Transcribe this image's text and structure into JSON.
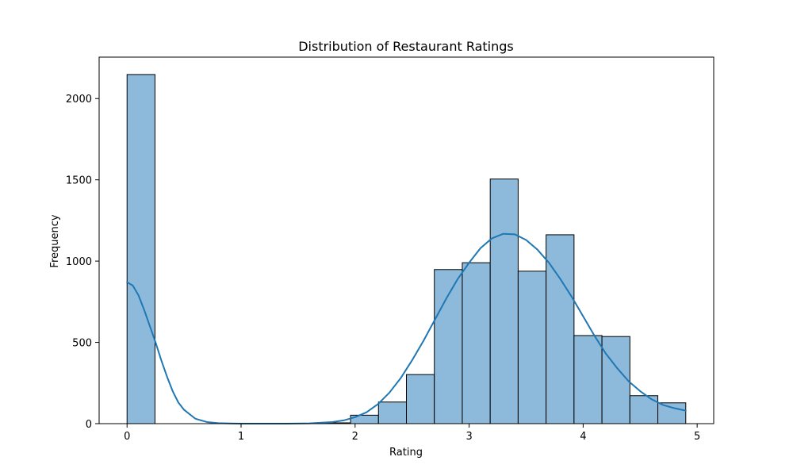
{
  "chart_data": {
    "type": "bar",
    "title": "Distribution of Restaurant Ratings",
    "xlabel": "Rating",
    "ylabel": "Frequency",
    "xlim": [
      -0.245,
      5.145
    ],
    "ylim": [
      0,
      2255
    ],
    "xticks": [
      0,
      1,
      2,
      3,
      4,
      5
    ],
    "yticks": [
      0,
      500,
      1000,
      1500,
      2000
    ],
    "grid": false,
    "bin_width": 0.245,
    "bins": [
      {
        "start": 0.0,
        "end": 0.245,
        "count": 2148
      },
      {
        "start": 0.245,
        "end": 0.49,
        "count": 0
      },
      {
        "start": 0.49,
        "end": 0.735,
        "count": 0
      },
      {
        "start": 0.735,
        "end": 0.98,
        "count": 0
      },
      {
        "start": 0.98,
        "end": 1.225,
        "count": 0
      },
      {
        "start": 1.225,
        "end": 1.47,
        "count": 0
      },
      {
        "start": 1.47,
        "end": 1.715,
        "count": 0
      },
      {
        "start": 1.715,
        "end": 1.96,
        "count": 5
      },
      {
        "start": 1.96,
        "end": 2.205,
        "count": 52
      },
      {
        "start": 2.205,
        "end": 2.45,
        "count": 133
      },
      {
        "start": 2.45,
        "end": 2.695,
        "count": 302
      },
      {
        "start": 2.695,
        "end": 2.94,
        "count": 948
      },
      {
        "start": 2.94,
        "end": 3.185,
        "count": 990
      },
      {
        "start": 3.185,
        "end": 3.43,
        "count": 1505
      },
      {
        "start": 3.43,
        "end": 3.675,
        "count": 938
      },
      {
        "start": 3.675,
        "end": 3.92,
        "count": 1162
      },
      {
        "start": 3.92,
        "end": 4.165,
        "count": 542
      },
      {
        "start": 4.165,
        "end": 4.41,
        "count": 536
      },
      {
        "start": 4.41,
        "end": 4.655,
        "count": 172
      },
      {
        "start": 4.655,
        "end": 4.9,
        "count": 128
      }
    ],
    "kde_curve": {
      "x": [
        0.0,
        0.05,
        0.1,
        0.15,
        0.2,
        0.25,
        0.3,
        0.35,
        0.4,
        0.45,
        0.5,
        0.6,
        0.7,
        0.8,
        0.9,
        1.0,
        1.2,
        1.4,
        1.6,
        1.8,
        1.9,
        2.0,
        2.1,
        2.2,
        2.3,
        2.4,
        2.5,
        2.6,
        2.7,
        2.8,
        2.9,
        3.0,
        3.1,
        3.2,
        3.3,
        3.4,
        3.5,
        3.6,
        3.7,
        3.8,
        3.9,
        4.0,
        4.1,
        4.2,
        4.3,
        4.4,
        4.5,
        4.6,
        4.7,
        4.8,
        4.9
      ],
      "y": [
        870,
        850,
        790,
        700,
        600,
        500,
        390,
        290,
        200,
        130,
        85,
        30,
        10,
        3,
        1,
        0,
        0,
        0,
        2,
        10,
        20,
        40,
        70,
        120,
        190,
        280,
        390,
        510,
        640,
        770,
        890,
        990,
        1080,
        1140,
        1168,
        1165,
        1130,
        1070,
        990,
        890,
        780,
        660,
        540,
        430,
        340,
        260,
        200,
        150,
        115,
        95,
        80
      ]
    },
    "colors": {
      "bar_fill": "#8dbada",
      "bar_edge": "#000000",
      "kde_line": "#1f77b4",
      "axes": "#000000",
      "background": "#ffffff"
    }
  }
}
